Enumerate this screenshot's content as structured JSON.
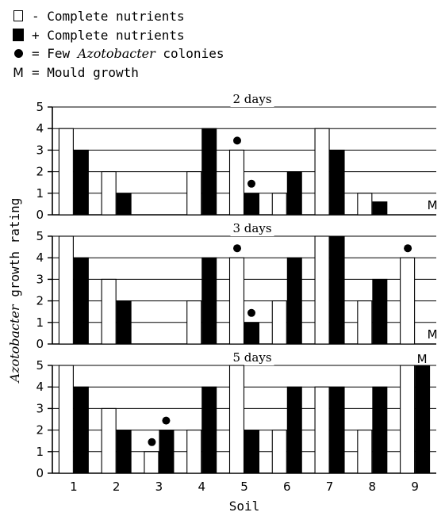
{
  "legend": [
    {
      "key": "open",
      "text": "- Complete nutrients"
    },
    {
      "key": "solid",
      "text": "+ Complete nutrients"
    },
    {
      "key": "dot",
      "pre": "= Few ",
      "italic": "Azotobacter",
      "post": " colonies"
    },
    {
      "key": "m",
      "key_label": "M",
      "text": "= Mould growth"
    }
  ],
  "chart_data": {
    "type": "bar",
    "categories": [
      "1",
      "2",
      "3",
      "4",
      "5",
      "6",
      "7",
      "8",
      "9"
    ],
    "xlabel": "Soil",
    "ylabel_italic": "Azotobacter",
    "ylabel_rest": " growth rating",
    "ylim": [
      0,
      5
    ],
    "yticks": [
      "0",
      "1",
      "2",
      "3",
      "4",
      "5"
    ],
    "series_keys": [
      "- Complete nutrients",
      "+ Complete nutrients"
    ],
    "colors": {
      "minus": "#ffffff",
      "plus": "#000000",
      "stroke": "#000000"
    },
    "panels": [
      {
        "title": "2 days",
        "minus": [
          4,
          2,
          0,
          2,
          3,
          1,
          4,
          1,
          0
        ],
        "plus": [
          3,
          1,
          0,
          4,
          1,
          2,
          3,
          0.6,
          0
        ],
        "few_colonies": [
          "5-",
          "5+"
        ],
        "mould_label": "M",
        "mould": [
          "9"
        ]
      },
      {
        "title": "3 days",
        "minus": [
          5,
          3,
          0,
          2,
          4,
          2,
          5,
          2,
          4
        ],
        "plus": [
          4,
          2,
          0,
          4,
          1,
          4,
          5,
          3,
          0
        ],
        "few_colonies": [
          "5-",
          "5+",
          "9-"
        ],
        "mould_label": "M",
        "mould": [
          "9"
        ]
      },
      {
        "title": "5 days",
        "minus": [
          5,
          3,
          1,
          2,
          5,
          2,
          4,
          2,
          5
        ],
        "plus": [
          4,
          2,
          2,
          4,
          2,
          4,
          4,
          4,
          5
        ],
        "few_colonies": [
          "3-",
          "3+"
        ],
        "mould_label": "M",
        "mould": [
          "9"
        ]
      }
    ]
  }
}
